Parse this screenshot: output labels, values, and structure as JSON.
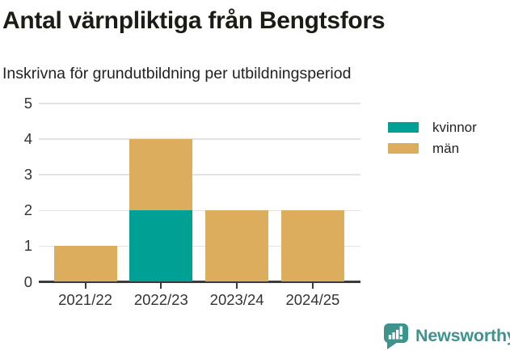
{
  "header": {
    "title": "Antal värnpliktiga från Bengtsfors",
    "subtitle": "Inskrivna för grundutbildning per utbildningsperiod"
  },
  "chart_data": {
    "type": "bar",
    "stacked": true,
    "title": "Antal värnpliktiga från Bengtsfors",
    "subtitle": "Inskrivna för grundutbildning per utbildningsperiod",
    "categories": [
      "2021/22",
      "2022/23",
      "2023/24",
      "2024/25"
    ],
    "series": [
      {
        "name": "kvinnor",
        "color": "#00a094",
        "values": [
          0,
          2,
          0,
          0
        ]
      },
      {
        "name": "män",
        "color": "#dbad5c",
        "values": [
          1,
          2,
          2,
          2
        ]
      }
    ],
    "totals": [
      1,
      4,
      2,
      2
    ],
    "xlabel": "",
    "ylabel": "",
    "ylim": [
      0,
      5
    ],
    "yticks": [
      0,
      1,
      2,
      3,
      4,
      5
    ],
    "grid": true,
    "legend_position": "right",
    "colors": {
      "grid": "#e2e2e2",
      "axis": "#3b3b3b",
      "tick_label": "#333333"
    }
  },
  "footer": {
    "brand": "Newsworthy",
    "brand_color": "#3e938d",
    "logo_icon": "speech-bubble-bar-chart-exclamation"
  }
}
